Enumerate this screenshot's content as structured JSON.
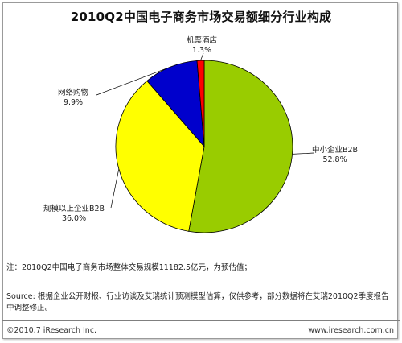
{
  "chart_data": {
    "type": "pie",
    "title": "2010Q2中国电子商务市场交易额细分行业构成",
    "slices": [
      {
        "name": "中小企业B2B",
        "value": 52.8,
        "label": "52.8%",
        "color": "#99cc00"
      },
      {
        "name": "规模以上企业B2B",
        "value": 36.0,
        "label": "36.0%",
        "color": "#ffff00"
      },
      {
        "name": "网络购物",
        "value": 9.9,
        "label": "9.9%",
        "color": "#0000cc"
      },
      {
        "name": "机票酒店",
        "value": 1.3,
        "label": "1.3%",
        "color": "#ff0000"
      }
    ]
  },
  "note": "注：2010Q2中国电子商务市场整体交易规模11182.5亿元，为预估值；",
  "source": "Source: 根据企业公开财报、行业访谈及艾瑞统计预测模型估算，仅供参考，部分数据将在艾瑞2010Q2季度报告中调整修正。",
  "footer": {
    "copyright": "©2010.7 iResearch Inc.",
    "website": "www.iresearch.com.cn"
  }
}
